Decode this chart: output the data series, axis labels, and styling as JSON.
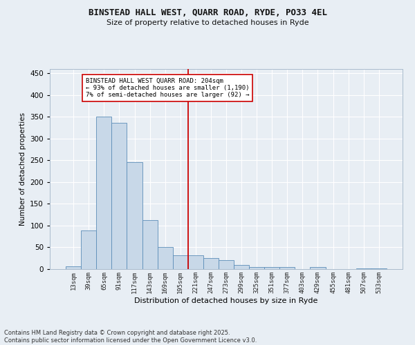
{
  "title": "BINSTEAD HALL WEST, QUARR ROAD, RYDE, PO33 4EL",
  "subtitle": "Size of property relative to detached houses in Ryde",
  "xlabel": "Distribution of detached houses by size in Ryde",
  "ylabel": "Number of detached properties",
  "footnote": "Contains HM Land Registry data © Crown copyright and database right 2025.\nContains public sector information licensed under the Open Government Licence v3.0.",
  "categories": [
    "13sqm",
    "39sqm",
    "65sqm",
    "91sqm",
    "117sqm",
    "143sqm",
    "169sqm",
    "195sqm",
    "221sqm",
    "247sqm",
    "273sqm",
    "299sqm",
    "325sqm",
    "351sqm",
    "377sqm",
    "403sqm",
    "429sqm",
    "455sqm",
    "481sqm",
    "507sqm",
    "533sqm"
  ],
  "values": [
    6,
    89,
    350,
    336,
    246,
    112,
    50,
    32,
    32,
    25,
    20,
    10,
    5,
    5,
    5,
    0,
    4,
    0,
    0,
    2,
    2
  ],
  "bar_color": "#c8d8e8",
  "bar_edge_color": "#5b8db8",
  "background_color": "#e8eef4",
  "grid_color": "#ffffff",
  "annotation_text": "BINSTEAD HALL WEST QUARR ROAD: 204sqm\n← 93% of detached houses are smaller (1,190)\n7% of semi-detached houses are larger (92) →",
  "vline_x": 7.5,
  "vline_color": "#cc0000",
  "annotation_box_color": "#ffffff",
  "annotation_box_edge": "#cc0000",
  "ylim": [
    0,
    460
  ],
  "yticks": [
    0,
    50,
    100,
    150,
    200,
    250,
    300,
    350,
    400,
    450
  ]
}
